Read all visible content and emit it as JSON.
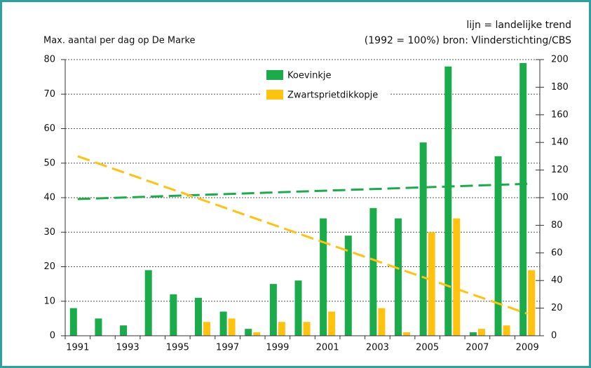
{
  "chart_data": {
    "type": "bar",
    "title": "Max. aantal per dag op De Marke",
    "annotations": [
      "lijn = landelijke trend",
      "(1992 = 100%) bron: Vlinderstichting/CBS"
    ],
    "categories": [
      "1991",
      null,
      "1993",
      null,
      "1995",
      null,
      "1997",
      null,
      "1999",
      null,
      "2001",
      null,
      "2003",
      null,
      "2005",
      null,
      "2007",
      null,
      "2009"
    ],
    "series": [
      {
        "name": "Koevinkje",
        "color": "#1aab4b",
        "values": [
          8,
          5,
          3,
          19,
          12,
          11,
          7,
          2,
          15,
          16,
          34,
          29,
          37,
          34,
          56,
          78,
          1,
          52,
          79
        ]
      },
      {
        "name": "Zwartsprietdikkopje",
        "color": "#ffc20e",
        "values": [
          0,
          0,
          0,
          0,
          0,
          4,
          5,
          1,
          4,
          4,
          7,
          0,
          8,
          1,
          30,
          34,
          2,
          3,
          19
        ]
      }
    ],
    "trends": [
      {
        "color": "#1aab4b",
        "axis": "y2",
        "values": [
          99,
          110
        ]
      },
      {
        "color": "#ffc20e",
        "axis": "y2",
        "values": [
          130,
          16
        ]
      }
    ],
    "ylim": [
      0,
      80
    ],
    "yticks": [
      0,
      10,
      20,
      30,
      40,
      50,
      60,
      70,
      80
    ],
    "y2lim": [
      0,
      200
    ],
    "y2ticks": [
      0,
      20,
      40,
      60,
      80,
      100,
      120,
      140,
      160,
      180,
      200
    ],
    "grid": true
  }
}
